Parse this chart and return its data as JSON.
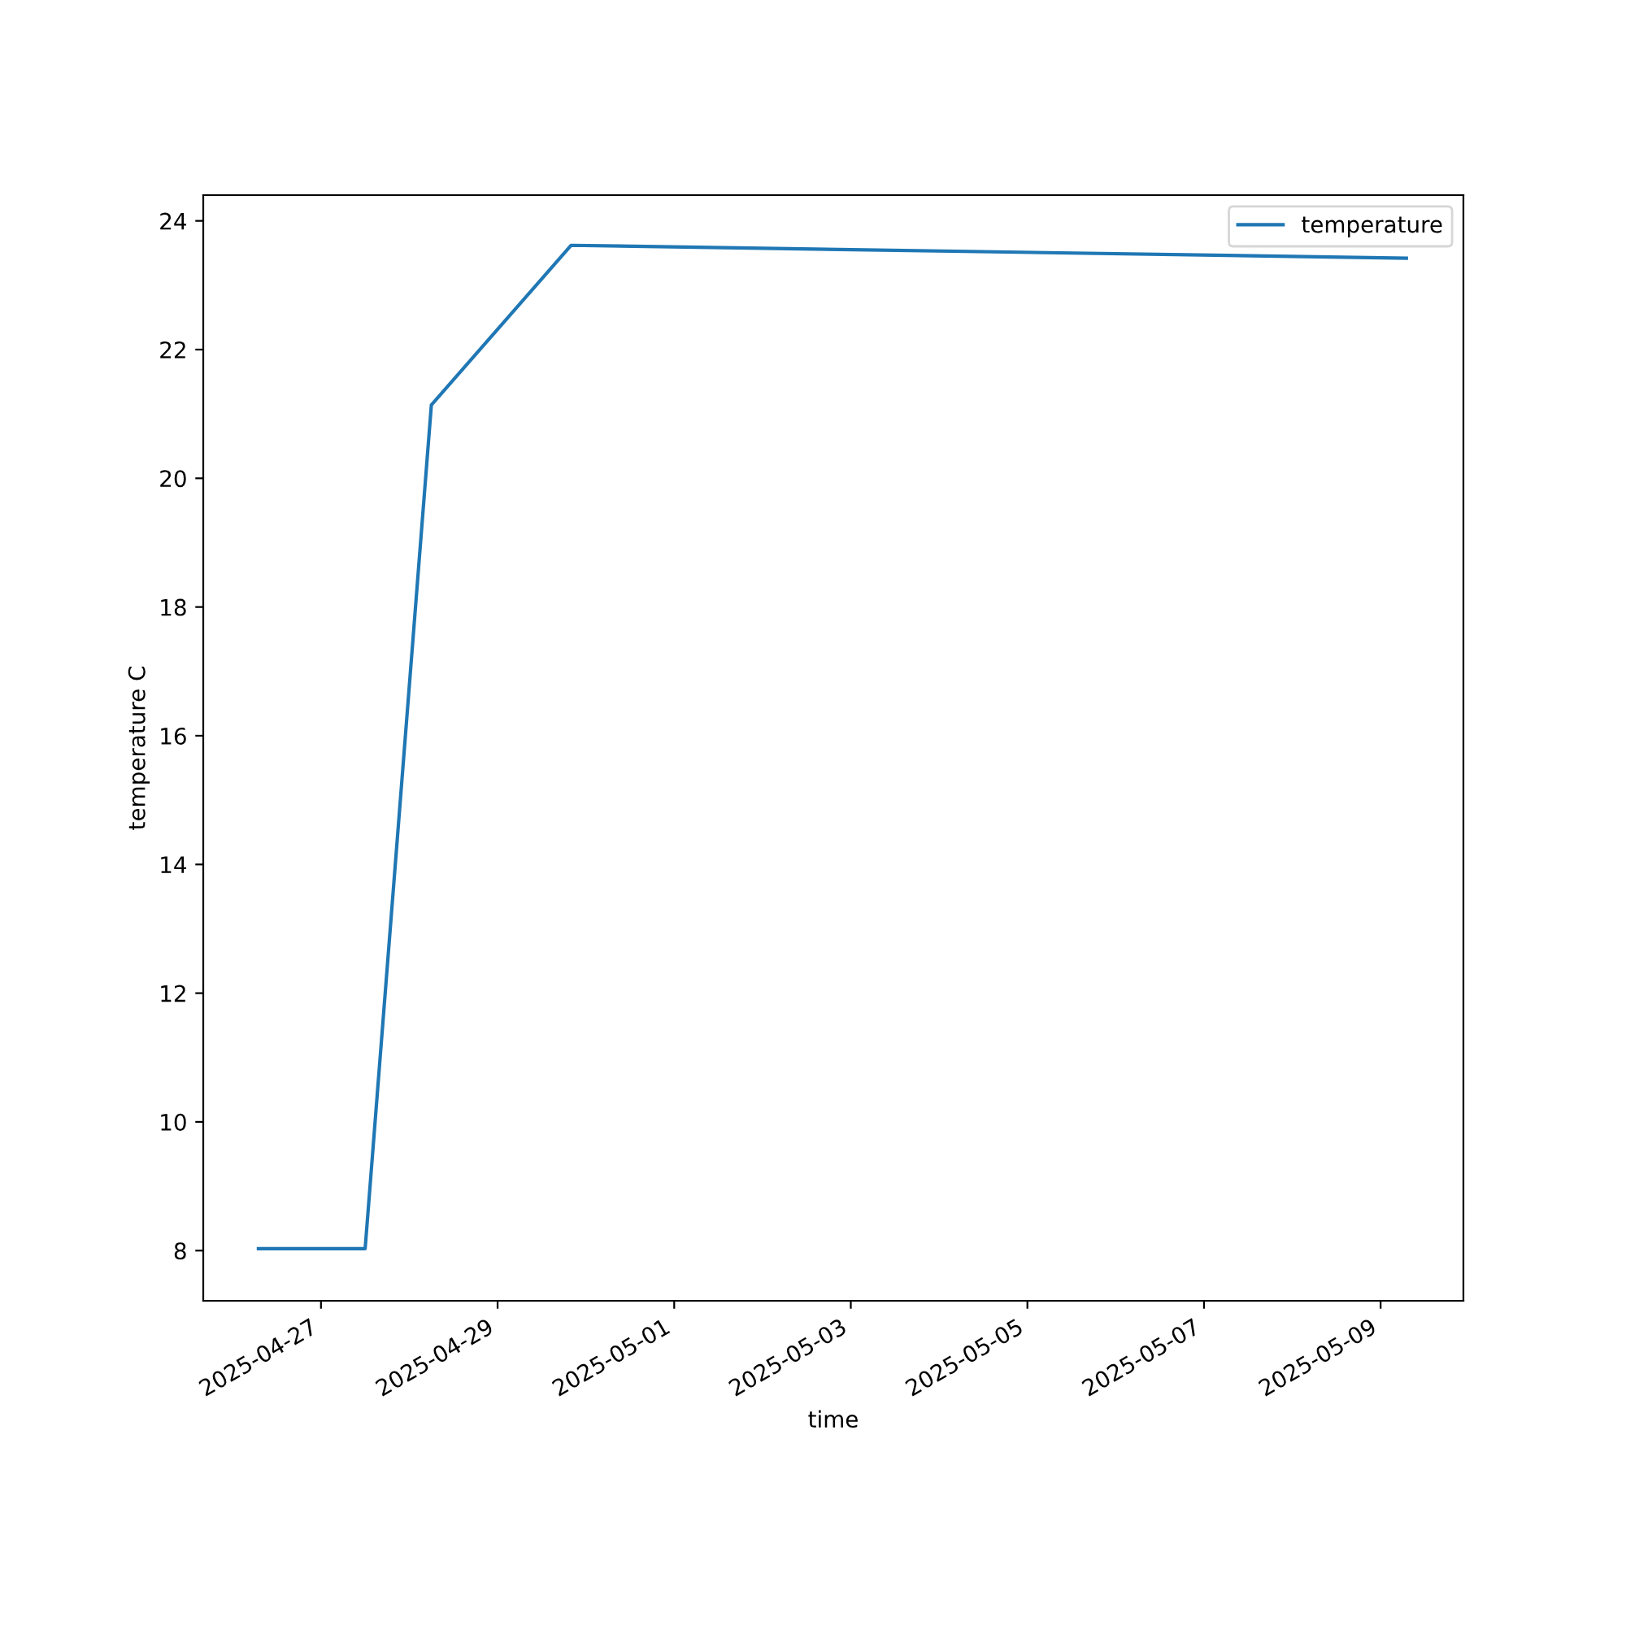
{
  "chart_data": {
    "type": "line",
    "xlabel": "time",
    "ylabel": "temperature C",
    "x": [
      "2025-04-26T07:00",
      "2025-04-27T12:00",
      "2025-04-28T06:00",
      "2025-04-29T20:00",
      "2025-05-09T07:00"
    ],
    "series": [
      {
        "name": "temperature",
        "color": "#1f77b4",
        "values": [
          8.03,
          8.03,
          21.14,
          23.62,
          23.42
        ]
      }
    ],
    "xlim": [
      "2025-04-25T16:00",
      "2025-05-09T22:30"
    ],
    "xticks": [
      "2025-04-27",
      "2025-04-29",
      "2025-05-01",
      "2025-05-03",
      "2025-05-05",
      "2025-05-07",
      "2025-05-09"
    ],
    "ylim": [
      7.22,
      24.4
    ],
    "yticks": [
      8,
      10,
      12,
      14,
      16,
      18,
      20,
      22,
      24
    ],
    "legend": "top right",
    "grid": false,
    "marker": "none",
    "line_style": "solid"
  }
}
